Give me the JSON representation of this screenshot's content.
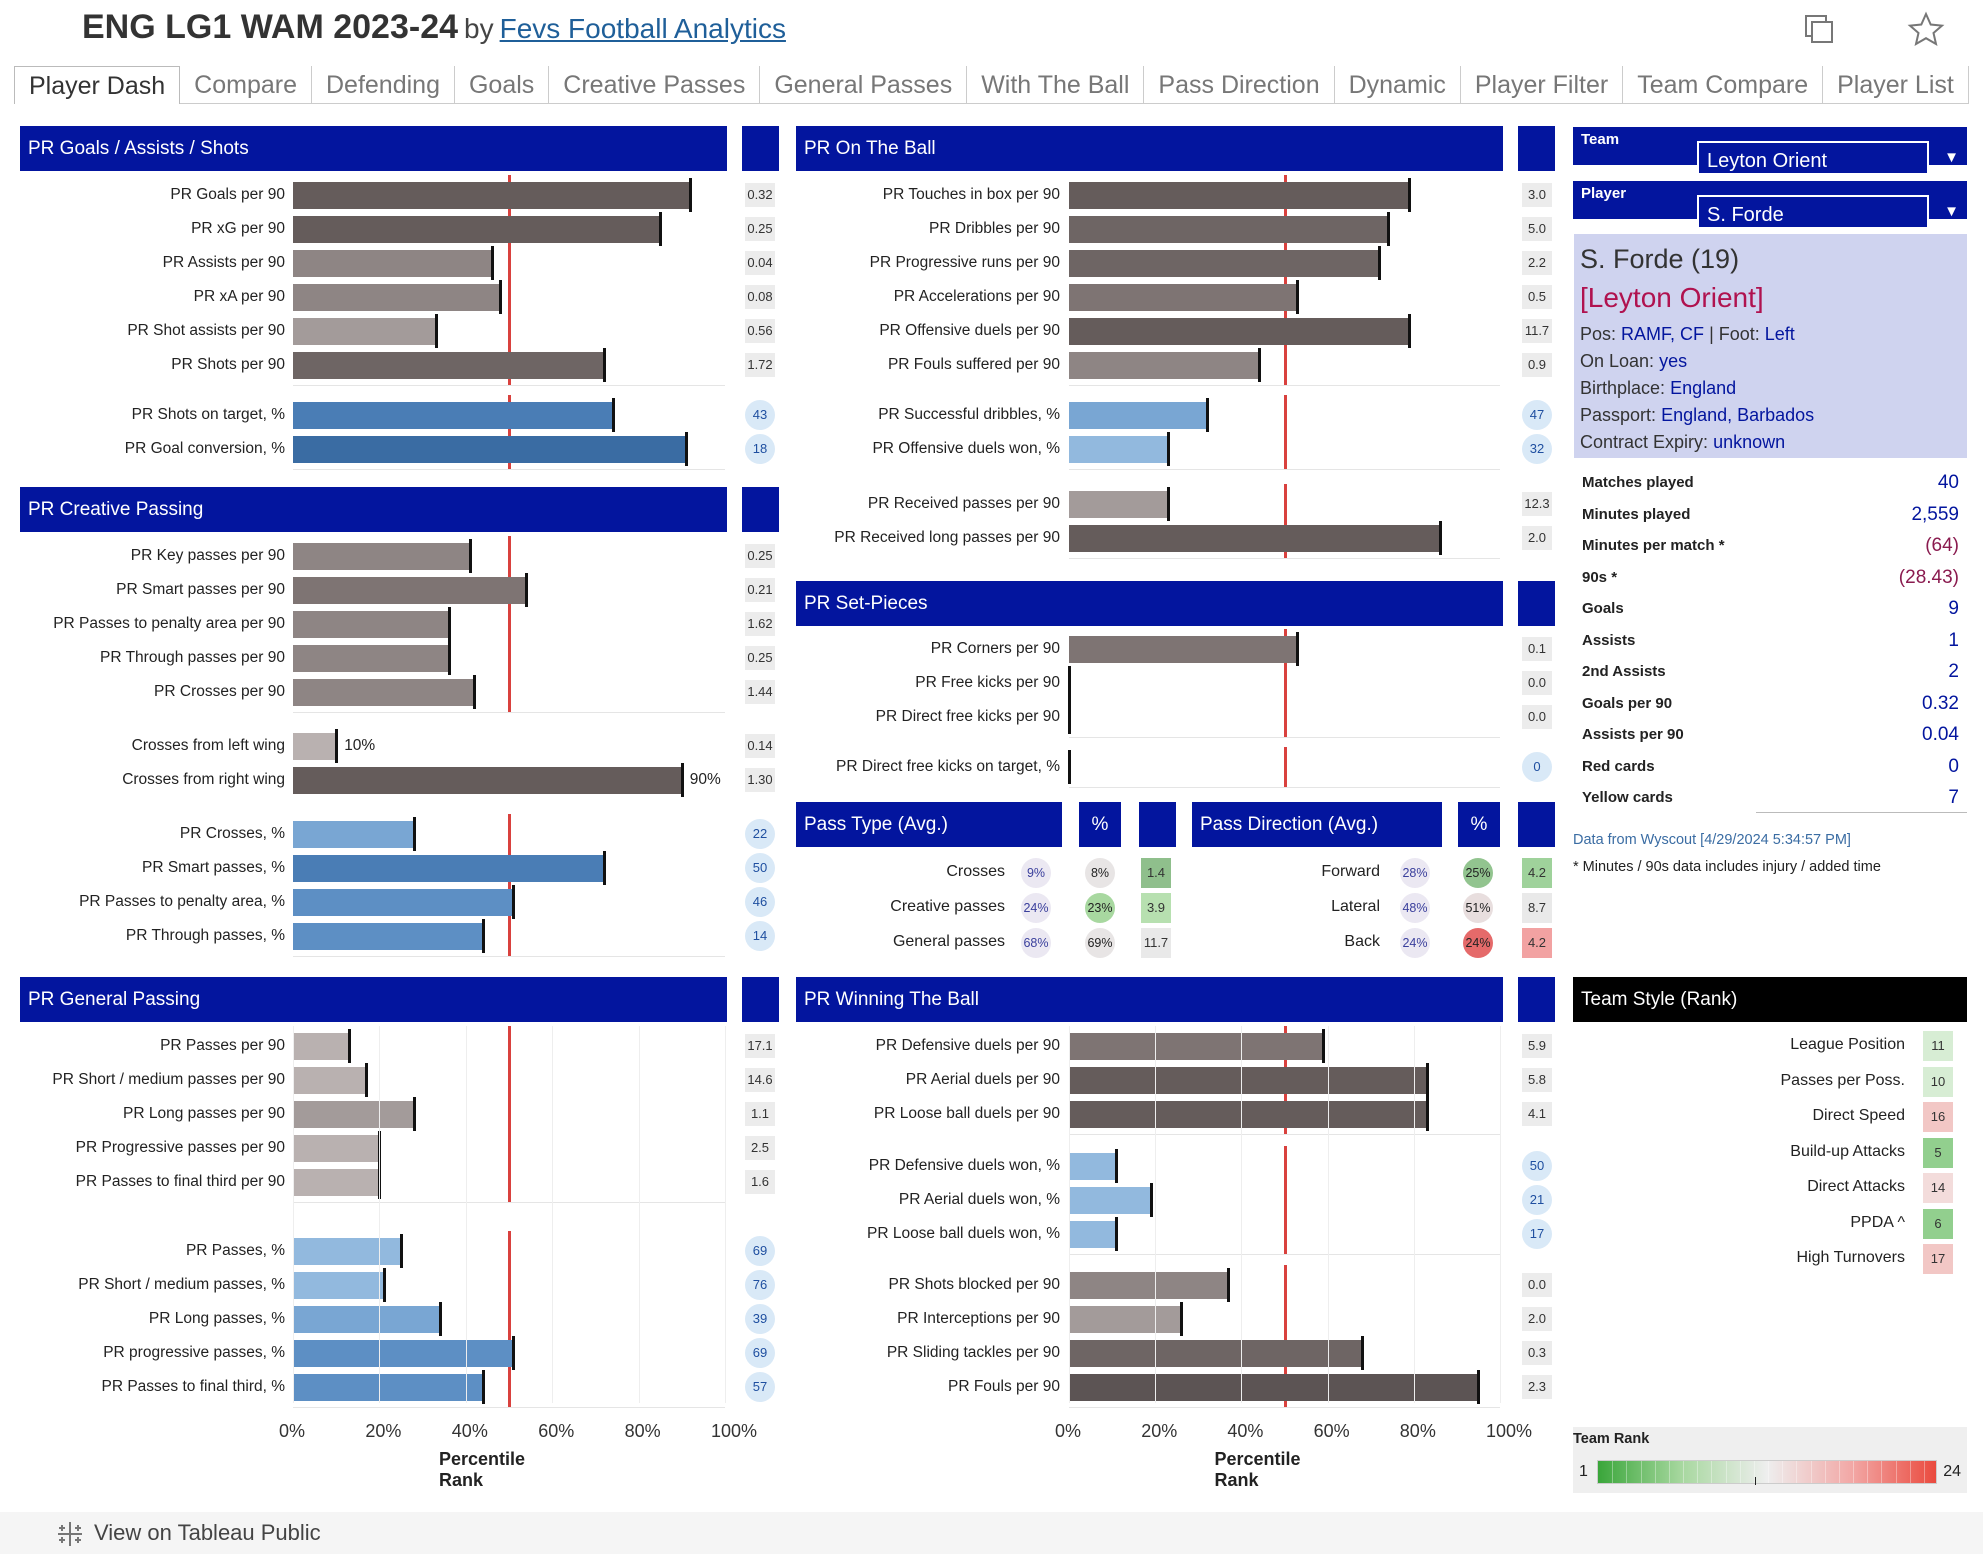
{
  "header": {
    "title": "ENG LG1 WAM 2023-24",
    "by": "by",
    "author": "Fevs Football Analytics",
    "icons": [
      "duplicate-icon",
      "star-icon"
    ]
  },
  "tabs": [
    "Player Dash",
    "Compare",
    "Defending",
    "Goals",
    "Creative Passes",
    "General Passes",
    "With The Ball",
    "Pass Direction",
    "Dynamic",
    "Player Filter",
    "Team Compare",
    "Player List"
  ],
  "colors": {
    "header_blue": "#03159e",
    "reference_line": "#d9413e",
    "bar_dark": "#5f5656",
    "bar_light": "#c9c0bf",
    "bar_blue": "#2f5f93",
    "bar_light_blue": "#a7cbea",
    "name_highlight": "#b0124f"
  },
  "sections": {
    "goals": {
      "title": "PR Goals / Assists / Shots",
      "rows": [
        {
          "label": "PR Goals per 90",
          "pct": 92,
          "value": "0.32"
        },
        {
          "label": "PR xG per 90",
          "pct": 85,
          "value": "0.25"
        },
        {
          "label": "PR Assists per 90",
          "pct": 46,
          "value": "0.04"
        },
        {
          "label": "PR xA per 90",
          "pct": 48,
          "value": "0.08"
        },
        {
          "label": "PR Shot assists per 90",
          "pct": 33,
          "value": "0.56"
        },
        {
          "label": "PR Shots per 90",
          "pct": 72,
          "value": "1.72"
        },
        {
          "label": "PR Shots on target, %",
          "pct": 74,
          "value": "43"
        },
        {
          "label": "PR Goal conversion, %",
          "pct": 91,
          "value": "18"
        }
      ]
    },
    "creative": {
      "title": "PR Creative Passing",
      "rows": [
        {
          "label": "PR Key passes per 90",
          "pct": 41,
          "value": "0.25"
        },
        {
          "label": "PR Smart passes per 90",
          "pct": 54,
          "value": "0.21"
        },
        {
          "label": "PR Passes to penalty area per 90",
          "pct": 36,
          "value": "1.62"
        },
        {
          "label": "PR Through passes per 90",
          "pct": 36,
          "value": "0.25"
        },
        {
          "label": "PR Crosses per 90",
          "pct": 42,
          "value": "1.44"
        },
        {
          "label": "Crosses from left wing",
          "pct": 10,
          "value": "0.14",
          "inline": "10%"
        },
        {
          "label": "Crosses from right wing",
          "pct": 90,
          "value": "1.30",
          "inline": "90%"
        },
        {
          "label": "PR Crosses, %",
          "pct": 28,
          "value": "22"
        },
        {
          "label": "PR Smart passes, %",
          "pct": 72,
          "value": "50"
        },
        {
          "label": "PR Passes to penalty area, %",
          "pct": 51,
          "value": "46"
        },
        {
          "label": "PR Through passes, %",
          "pct": 44,
          "value": "14"
        }
      ]
    },
    "general": {
      "title": "PR General Passing",
      "rows": [
        {
          "label": "PR Passes per 90",
          "pct": 13,
          "value": "17.1"
        },
        {
          "label": "PR Short / medium passes per 90",
          "pct": 17,
          "value": "14.6"
        },
        {
          "label": "PR Long passes per 90",
          "pct": 28,
          "value": "1.1"
        },
        {
          "label": "PR Progressive passes per 90",
          "pct": 20,
          "value": "2.5"
        },
        {
          "label": "PR Passes to final third per 90",
          "pct": 20,
          "value": "1.6"
        },
        {
          "label": "PR Passes, %",
          "pct": 25,
          "value": "69"
        },
        {
          "label": "PR Short / medium passes, %",
          "pct": 21,
          "value": "76"
        },
        {
          "label": "PR Long passes, %",
          "pct": 34,
          "value": "39"
        },
        {
          "label": "PR progressive passes, %",
          "pct": 51,
          "value": "69"
        },
        {
          "label": "PR Passes to final third, %",
          "pct": 44,
          "value": "57"
        }
      ]
    },
    "ontheball": {
      "title": "PR On The Ball",
      "rows": [
        {
          "label": "PR Touches in box per 90",
          "pct": 79,
          "value": "3.0"
        },
        {
          "label": "PR Dribbles per 90",
          "pct": 74,
          "value": "5.0"
        },
        {
          "label": "PR Progressive runs per 90",
          "pct": 72,
          "value": "2.2"
        },
        {
          "label": "PR Accelerations per 90",
          "pct": 53,
          "value": "0.5"
        },
        {
          "label": "PR Offensive duels per 90",
          "pct": 79,
          "value": "11.7"
        },
        {
          "label": "PR Fouls suffered per 90",
          "pct": 44,
          "value": "0.9"
        },
        {
          "label": "PR Successful dribbles, %",
          "pct": 32,
          "value": "47"
        },
        {
          "label": "PR Offensive duels won, %",
          "pct": 23,
          "value": "32"
        },
        {
          "label": "PR Received passes per 90",
          "pct": 23,
          "value": "12.3"
        },
        {
          "label": "PR Received long passes per 90",
          "pct": 86,
          "value": "2.0"
        }
      ]
    },
    "setpieces": {
      "title": "PR Set-Pieces",
      "rows": [
        {
          "label": "PR Corners per 90",
          "pct": 53,
          "value": "0.1"
        },
        {
          "label": "PR Free kicks per 90",
          "pct": 0,
          "value": "0.0"
        },
        {
          "label": "PR Direct free kicks per 90",
          "pct": 0,
          "value": "0.0"
        },
        {
          "label": "PR Direct free kicks on target, %",
          "pct": 0,
          "value": "0"
        }
      ]
    },
    "winning": {
      "title": "PR Winning The Ball",
      "rows": [
        {
          "label": "PR Defensive duels per 90",
          "pct": 59,
          "value": "5.9"
        },
        {
          "label": "PR Aerial duels per 90",
          "pct": 83,
          "value": "5.8"
        },
        {
          "label": "PR Loose ball duels per 90",
          "pct": 83,
          "value": "4.1"
        },
        {
          "label": "PR Defensive duels won, %",
          "pct": 11,
          "value": "50"
        },
        {
          "label": "PR Aerial duels won, %",
          "pct": 19,
          "value": "21"
        },
        {
          "label": "PR Loose ball duels won, %",
          "pct": 11,
          "value": "17"
        },
        {
          "label": "PR Shots blocked per 90",
          "pct": 37,
          "value": "0.0"
        },
        {
          "label": "PR Interceptions per 90",
          "pct": 26,
          "value": "2.0"
        },
        {
          "label": "PR Sliding tackles per 90",
          "pct": 68,
          "value": "0.3"
        },
        {
          "label": "PR Fouls per 90",
          "pct": 95,
          "value": "2.3"
        }
      ]
    }
  },
  "axis": {
    "ticks": [
      "0%",
      "20%",
      "40%",
      "60%",
      "80%",
      "100%"
    ],
    "title": "Percentile Rank",
    "reference_pct": 50
  },
  "pass_type": {
    "title": "Pass Type (Avg.)",
    "pct_label": "%",
    "rows": [
      {
        "label": "Crosses",
        "avg": "9%",
        "player": "8%",
        "value": "1.4"
      },
      {
        "label": "Creative passes",
        "avg": "24%",
        "player": "23%",
        "value": "3.9"
      },
      {
        "label": "General passes",
        "avg": "68%",
        "player": "69%",
        "value": "11.7"
      }
    ]
  },
  "pass_direction": {
    "title": "Pass Direction (Avg.)",
    "pct_label": "%",
    "rows": [
      {
        "label": "Forward",
        "avg": "28%",
        "player": "25%",
        "value": "4.2"
      },
      {
        "label": "Lateral",
        "avg": "48%",
        "player": "51%",
        "value": "8.7"
      },
      {
        "label": "Back",
        "avg": "24%",
        "player": "24%",
        "value": "4.2"
      }
    ]
  },
  "filters": {
    "team_label": "Team",
    "team_value": "Leyton Orient",
    "player_label": "Player",
    "player_value": "S. Forde"
  },
  "player": {
    "name": "S. Forde (19)",
    "team": "[Leyton Orient]",
    "pos_label": "Pos:",
    "pos": "RAMF, CF",
    "foot_label": "| Foot:",
    "foot": "Left",
    "loan_label": "On Loan:",
    "loan": "yes",
    "birth_label": "Birthplace:",
    "birth": "England",
    "passport_label": "Passport:",
    "passport": "England, Barbados",
    "contract_label": "Contract Expiry:",
    "contract": "unknown"
  },
  "stats": [
    {
      "label": "Matches played",
      "value": "40"
    },
    {
      "label": "Minutes played",
      "value": "2,559"
    },
    {
      "label": "Minutes per match *",
      "value": "(64)"
    },
    {
      "label": "90s *",
      "value": "(28.43)"
    },
    {
      "label": "Goals",
      "value": "9"
    },
    {
      "label": "Assists",
      "value": "1"
    },
    {
      "label": "2nd Assists",
      "value": "2"
    },
    {
      "label": "Goals per 90",
      "value": "0.32"
    },
    {
      "label": "Assists per 90",
      "value": "0.04"
    },
    {
      "label": "Red cards",
      "value": "0"
    },
    {
      "label": "Yellow cards",
      "value": "7"
    }
  ],
  "data_note": "Data from Wyscout [4/29/2024 5:34:57 PM]",
  "minutes_note": "* Minutes / 90s data includes injury / added time",
  "team_style": {
    "title": "Team Style (Rank)",
    "rows": [
      {
        "label": "League Position",
        "rank": "11"
      },
      {
        "label": "Passes per Poss.",
        "rank": "10"
      },
      {
        "label": "Direct Speed",
        "rank": "16"
      },
      {
        "label": "Build-up Attacks",
        "rank": "5"
      },
      {
        "label": "Direct Attacks",
        "rank": "14"
      },
      {
        "label": "PPDA ^",
        "rank": "6"
      },
      {
        "label": "High Turnovers",
        "rank": "17"
      }
    ]
  },
  "team_rank_legend": {
    "title": "Team Rank",
    "min": "1",
    "max": "24"
  },
  "footer": {
    "text": "View on Tableau Public",
    "icon": "tableau-icon"
  }
}
